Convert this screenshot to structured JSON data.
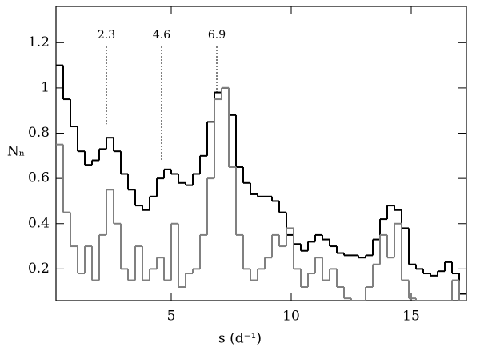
{
  "chart_data": {
    "type": "histogram",
    "x_label": "s (d⁻¹)",
    "y_label": "Nₙ",
    "bins": [
      0.2,
      0.5,
      0.8,
      1.1,
      1.4,
      1.7,
      2.0,
      2.3,
      2.6,
      2.9,
      3.2,
      3.5,
      3.8,
      4.1,
      4.4,
      4.7,
      5.0,
      5.3,
      5.6,
      5.9,
      6.2,
      6.5,
      6.8,
      7.1,
      7.4,
      7.7,
      8.0,
      8.3,
      8.6,
      8.9,
      9.2,
      9.5,
      9.8,
      10.1,
      10.4,
      10.7,
      11.0,
      11.3,
      11.6,
      11.9,
      12.2,
      12.5,
      12.8,
      13.1,
      13.4,
      13.7,
      14.0,
      14.3,
      14.6,
      14.9,
      15.2,
      15.5,
      15.8,
      16.1,
      16.4,
      16.7,
      17.0,
      17.3
    ],
    "series": [
      {
        "color": "#000000",
        "values": [
          1.1,
          0.95,
          0.83,
          0.72,
          0.66,
          0.68,
          0.73,
          0.78,
          0.72,
          0.62,
          0.55,
          0.48,
          0.46,
          0.52,
          0.6,
          0.64,
          0.62,
          0.58,
          0.57,
          0.62,
          0.7,
          0.85,
          0.98,
          1.0,
          0.88,
          0.65,
          0.58,
          0.53,
          0.52,
          0.52,
          0.5,
          0.45,
          0.35,
          0.31,
          0.28,
          0.32,
          0.35,
          0.33,
          0.3,
          0.27,
          0.26,
          0.26,
          0.25,
          0.26,
          0.33,
          0.42,
          0.48,
          0.46,
          0.38,
          0.22,
          0.2,
          0.18,
          0.17,
          0.19,
          0.23,
          0.18,
          0.09
        ]
      },
      {
        "color": "#808080",
        "values": [
          0.75,
          0.45,
          0.3,
          0.18,
          0.3,
          0.15,
          0.35,
          0.55,
          0.4,
          0.2,
          0.15,
          0.3,
          0.15,
          0.2,
          0.25,
          0.15,
          0.4,
          0.12,
          0.18,
          0.2,
          0.35,
          0.6,
          0.95,
          1.0,
          0.65,
          0.35,
          0.2,
          0.15,
          0.2,
          0.25,
          0.35,
          0.3,
          0.38,
          0.2,
          0.12,
          0.18,
          0.25,
          0.15,
          0.2,
          0.12,
          0.07,
          0.06,
          0.06,
          0.12,
          0.22,
          0.35,
          0.25,
          0.4,
          0.15,
          0.07,
          0.06,
          0.06,
          0.06,
          0.06,
          0.06,
          0.15,
          0.06
        ]
      }
    ],
    "annotations": [
      {
        "label": "2.3",
        "x": 2.3,
        "y": 0.84
      },
      {
        "label": "4.6",
        "x": 4.6,
        "y": 0.68
      },
      {
        "label": "6.9",
        "x": 6.9,
        "y": 0.98
      }
    ],
    "xlim": [
      0.2,
      17.3
    ],
    "ylim": [
      0.06,
      1.36
    ],
    "xticks": [
      5,
      10,
      15
    ],
    "yticks": [
      0.2,
      0.4,
      0.6,
      0.8,
      1.0,
      1.2
    ]
  }
}
